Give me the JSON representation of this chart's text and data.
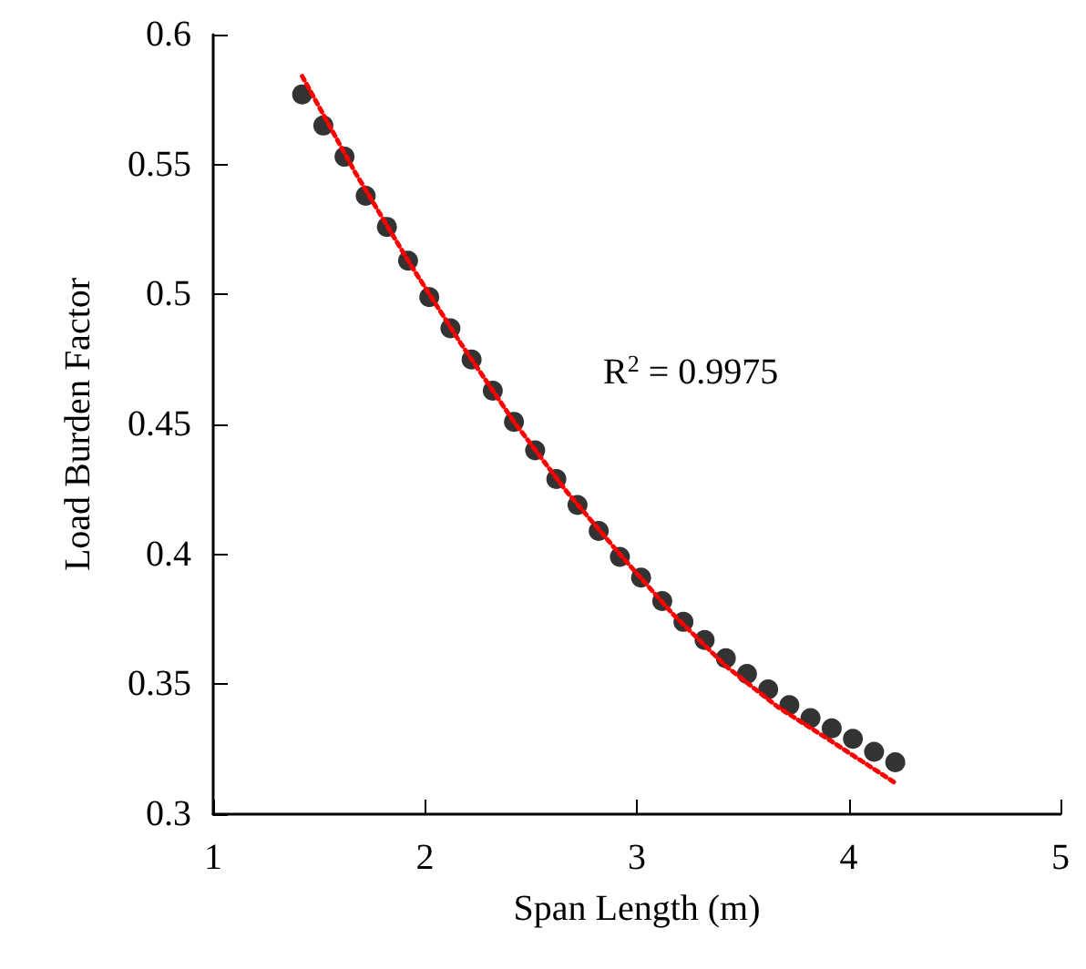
{
  "chart_data": {
    "type": "scatter",
    "xlabel": "Span Length (m)",
    "ylabel": "Load Burden Factor",
    "annotations": [
      "R$^{2}$ = 0.9975"
    ],
    "series": [
      {
        "type": "scatter",
        "color": "#000000",
        "marker": "circle",
        "x": [
          1.42,
          1.52,
          1.62,
          1.72,
          1.82,
          1.92,
          2.02,
          2.12,
          2.22,
          2.32,
          2.42,
          2.52,
          2.62,
          2.72,
          2.82,
          2.92,
          3.02,
          3.12,
          3.22,
          3.32,
          3.42,
          3.52,
          3.62,
          3.72,
          3.82,
          3.92,
          4.02,
          4.12,
          4.22
        ],
        "values": [
          0.577,
          0.565,
          0.553,
          0.538,
          0.526,
          0.513,
          0.499,
          0.487,
          0.475,
          0.463,
          0.451,
          0.44,
          0.429,
          0.419,
          0.409,
          0.399,
          0.391,
          0.382,
          0.374,
          0.367,
          0.36,
          0.354,
          0.348,
          0.342,
          0.337,
          0.333,
          0.329,
          0.324,
          0.32
        ]
      },
      {
        "type": "line",
        "color": "#ff0000",
        "line_style": "dotted",
        "marker": "none",
        "x": [
          1.42,
          1.67,
          1.92,
          2.17,
          2.42,
          2.67,
          2.92,
          3.17,
          3.42,
          3.67,
          3.92,
          4.22
        ],
        "values": [
          0.584,
          0.547,
          0.513,
          0.481,
          0.451,
          0.424,
          0.4,
          0.377,
          0.357,
          0.341,
          0.328,
          0.312
        ]
      }
    ],
    "xlim": [
      1,
      5
    ],
    "xticks": [
      1,
      2,
      3,
      4,
      5
    ],
    "ylim": [
      0.3,
      0.6
    ],
    "yticks": [
      0.3,
      0.35,
      0.4,
      0.45,
      0.5,
      0.55,
      0.6
    ],
    "grid": false
  }
}
